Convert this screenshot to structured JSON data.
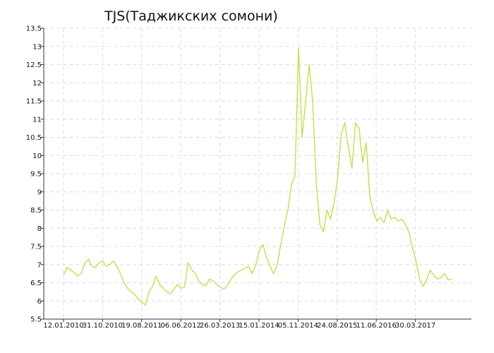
{
  "chart_data": {
    "type": "line",
    "title": "TJS(Таджикских сомони)",
    "xlabel": "",
    "ylabel": "",
    "ylim": [
      5.5,
      13.5
    ],
    "y_ticks": [
      "5.5",
      "6",
      "6.5",
      "7",
      "7.5",
      "8",
      "8.5",
      "9",
      "9.5",
      "10",
      "10.5",
      "11",
      "11.5",
      "12",
      "12.5",
      "13",
      "13.5"
    ],
    "x_ticks": [
      "12.01.2010",
      "31.10.2010",
      "19.08.2011",
      "06.06.2012",
      "26.03.2013",
      "15.01.2014",
      "05.11.2014",
      "24.08.2015",
      "11.06.2016",
      "30.03.2017"
    ],
    "grid": true,
    "line_color": "#c5e04a",
    "series": [
      {
        "values": [
          6.72,
          6.92,
          6.85,
          6.78,
          6.68,
          6.75,
          7.05,
          7.15,
          6.95,
          6.92,
          7.05,
          7.1,
          6.95,
          7.0,
          7.1,
          6.95,
          6.75,
          6.5,
          6.35,
          6.25,
          6.18,
          6.05,
          5.98,
          5.88,
          6.25,
          6.4,
          6.68,
          6.45,
          6.35,
          6.25,
          6.2,
          6.32,
          6.45,
          6.35,
          6.38,
          7.05,
          6.85,
          6.75,
          6.55,
          6.45,
          6.42,
          6.6,
          6.55,
          6.45,
          6.38,
          6.32,
          6.42,
          6.6,
          6.72,
          6.8,
          6.85,
          6.9,
          6.95,
          6.75,
          7.0,
          7.4,
          7.55,
          7.2,
          6.95,
          6.75,
          7.0,
          7.55,
          8.05,
          8.5,
          9.2,
          9.45,
          12.95,
          10.5,
          11.5,
          12.5,
          11.45,
          9.2,
          8.1,
          7.9,
          8.5,
          8.25,
          8.7,
          9.4,
          10.6,
          10.9,
          10.2,
          9.65,
          10.9,
          10.75,
          9.8,
          10.35,
          8.9,
          8.45,
          8.2,
          8.3,
          8.15,
          8.5,
          8.25,
          8.3,
          8.2,
          8.25,
          8.1,
          7.9,
          7.45,
          7.1,
          6.6,
          6.4,
          6.6,
          6.85,
          6.7,
          6.6,
          6.65,
          6.75,
          6.58,
          6.6
        ]
      }
    ]
  }
}
